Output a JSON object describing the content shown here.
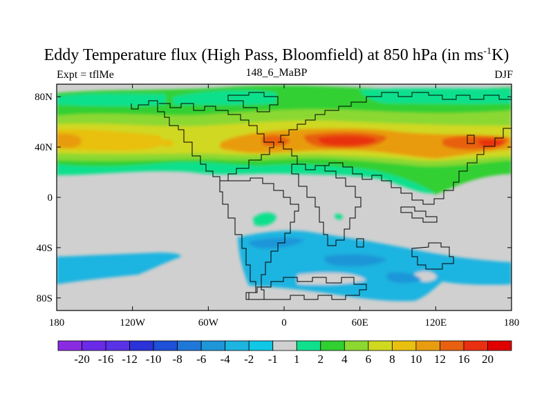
{
  "figure": {
    "title_main": "Eddy Temperature flux (High Pass, Bloomfield) at 850 hPa (in ms",
    "title_sup": "-1",
    "title_end": "K)",
    "left_label": "Expt = tflMe",
    "center_label": "148_6_MaBP",
    "right_label": "DJF"
  },
  "axes": {
    "x_ticks": [
      {
        "value": -180,
        "label": "180"
      },
      {
        "value": -120,
        "label": "120W"
      },
      {
        "value": -60,
        "label": "60W"
      },
      {
        "value": 0,
        "label": "0"
      },
      {
        "value": 60,
        "label": "60E"
      },
      {
        "value": 120,
        "label": "120E"
      },
      {
        "value": 180,
        "label": "180"
      }
    ],
    "y_ticks": [
      {
        "value": 80,
        "label": "80N"
      },
      {
        "value": 40,
        "label": "40N"
      },
      {
        "value": 0,
        "label": "0"
      },
      {
        "value": -40,
        "label": "40S"
      },
      {
        "value": -80,
        "label": "80S"
      }
    ],
    "xlim": [
      -180,
      180
    ],
    "ylim": [
      -90,
      90
    ]
  },
  "colorbar": {
    "labels": [
      "-20",
      "-16",
      "-12",
      "-10",
      "-8",
      "-6",
      "-4",
      "-2",
      "-1",
      "1",
      "2",
      "4",
      "6",
      "8",
      "10",
      "12",
      "16",
      "20"
    ],
    "colors": [
      "#8a2be2",
      "#6a2be8",
      "#5a32e6",
      "#2a32d8",
      "#1e50d8",
      "#1e78d8",
      "#1e96d8",
      "#1eb4e0",
      "#10c8e6",
      "#d0d0d0",
      "#10e08c",
      "#30d030",
      "#8cd830",
      "#d0d820",
      "#e8c010",
      "#e89c10",
      "#e86010",
      "#e83010",
      "#e00000"
    ],
    "background_color": "#d0d0d0"
  },
  "chart_data": {
    "type": "heatmap",
    "title": "Eddy Temperature flux (High Pass, Bloomfield) at 850 hPa (in ms-1K)",
    "xlabel": "",
    "ylabel": "",
    "xlim": [
      -180,
      180
    ],
    "ylim": [
      -90,
      90
    ],
    "levels": [
      -20,
      -16,
      -12,
      -10,
      -8,
      -6,
      -4,
      -2,
      -1,
      1,
      2,
      4,
      6,
      8,
      10,
      12,
      16,
      20
    ],
    "regions": [
      {
        "level": "2 to 4",
        "lon": [
          -180,
          180
        ],
        "lat": [
          22,
          82
        ]
      },
      {
        "level": "4 to 6",
        "lon": [
          -180,
          180
        ],
        "lat": [
          28,
          70
        ]
      },
      {
        "level": "6 to 8",
        "lon": [
          -180,
          160
        ],
        "lat": [
          32,
          52
        ]
      },
      {
        "level": "10 to 16",
        "lon": [
          -180,
          -165
        ],
        "lat": [
          38,
          48
        ]
      },
      {
        "level": "10 to 16",
        "lon": [
          -30,
          0
        ],
        "lat": [
          40,
          50
        ]
      },
      {
        "level": "16 to 20",
        "lon": [
          25,
          75
        ],
        "lat": [
          38,
          52
        ]
      },
      {
        "level": "16 to 20",
        "lon": [
          135,
          175
        ],
        "lat": [
          38,
          48
        ]
      },
      {
        "level": "-4 to -2",
        "lon": [
          -180,
          -70
        ],
        "lat": [
          -70,
          -48
        ]
      },
      {
        "level": "-4 to -2",
        "lon": [
          -35,
          180
        ],
        "lat": [
          -80,
          -30
        ]
      },
      {
        "level": "1 to 2",
        "lon": [
          -25,
          5
        ],
        "lat": [
          -23,
          -14
        ]
      }
    ]
  }
}
